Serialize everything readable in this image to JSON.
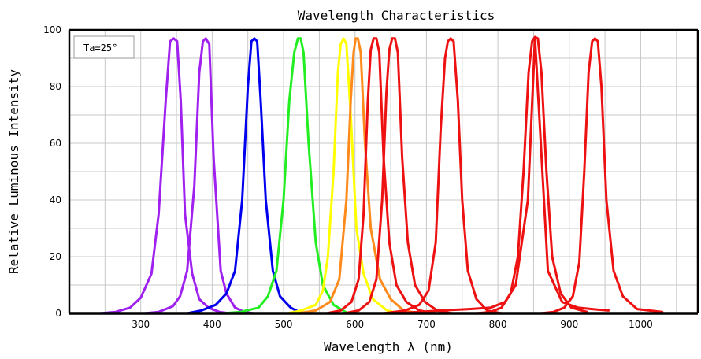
{
  "chart_data": {
    "type": "line",
    "title": "Wavelength Characteristics",
    "xlabel": "Wavelength  λ (nm)",
    "ylabel": "Relative Luminous Intensity",
    "xlim": [
      200,
      1080
    ],
    "ylim": [
      0,
      100
    ],
    "x_ticks": [
      300,
      400,
      500,
      600,
      700,
      800,
      900,
      1000
    ],
    "y_ticks": [
      0,
      20,
      40,
      60,
      80,
      100
    ],
    "x_grid": [
      250,
      300,
      350,
      400,
      450,
      500,
      550,
      600,
      650,
      700,
      750,
      800,
      850,
      900,
      950,
      1000,
      1050
    ],
    "y_grid": [
      10,
      20,
      30,
      40,
      50,
      60,
      70,
      80,
      90
    ],
    "grid": true,
    "annotation": "Ta=25°",
    "series": [
      {
        "color": "#a020f0",
        "x": [
          243,
          265,
          285,
          300,
          315,
          325,
          335,
          341,
          346,
          351,
          356,
          362,
          372,
          382,
          395,
          410,
          425
        ],
        "y": [
          0,
          0.5,
          2,
          5.5,
          14,
          35,
          75,
          96,
          97,
          96,
          75,
          35,
          14,
          5,
          2,
          0.5,
          0
        ]
      },
      {
        "color": "#a020f0",
        "x": [
          305,
          325,
          345,
          355,
          365,
          375,
          382,
          387,
          391,
          396,
          402,
          412,
          420,
          432,
          445,
          458
        ],
        "y": [
          0,
          0.5,
          2.5,
          6,
          15,
          45,
          85,
          96,
          97,
          95,
          55,
          15,
          7,
          2,
          0.5,
          0
        ]
      },
      {
        "color": "#0000ee",
        "x": [
          365,
          385,
          405,
          420,
          432,
          442,
          450,
          455,
          459,
          463,
          468,
          475,
          485,
          495,
          510,
          525
        ],
        "y": [
          0,
          1,
          3,
          7,
          15,
          40,
          80,
          96,
          97,
          96,
          75,
          40,
          15,
          6,
          2,
          0
        ]
      },
      {
        "color": "#22ee22",
        "x": [
          415,
          440,
          465,
          478,
          490,
          500,
          508,
          515,
          520,
          524,
          528,
          535,
          545,
          555,
          570,
          590
        ],
        "y": [
          0,
          0.5,
          2,
          6,
          15,
          40,
          75,
          92,
          97,
          97,
          92,
          60,
          25,
          10,
          3,
          0
        ]
      },
      {
        "color": "#ffff00",
        "x": [
          505,
          525,
          545,
          555,
          562,
          570,
          576,
          580,
          584,
          588,
          594,
          602,
          612,
          625,
          645,
          662
        ],
        "y": [
          0,
          1,
          3,
          8,
          20,
          50,
          85,
          95,
          97,
          95,
          70,
          30,
          14,
          5,
          1,
          0
        ]
      },
      {
        "color": "#ff8a1c",
        "x": [
          520,
          545,
          565,
          578,
          588,
          594,
          598,
          601,
          604,
          608,
          614,
          622,
          635,
          650,
          668,
          690
        ],
        "y": [
          0,
          1,
          4,
          12,
          40,
          75,
          92,
          97,
          97,
          92,
          60,
          30,
          12,
          5,
          1,
          0
        ]
      },
      {
        "color": "#ee1111",
        "x": [
          560,
          580,
          595,
          605,
          612,
          618,
          622,
          626,
          630,
          634,
          640,
          648,
          658,
          672,
          690,
          710
        ],
        "y": [
          0,
          1,
          4,
          12,
          35,
          75,
          93,
          97,
          97,
          92,
          55,
          25,
          10,
          4,
          1,
          0
        ]
      },
      {
        "color": "#ee1111",
        "x": [
          585,
          605,
          620,
          630,
          638,
          644,
          648,
          652,
          656,
          660,
          666,
          674,
          684,
          698,
          715,
          735
        ],
        "y": [
          0,
          1,
          4,
          12,
          40,
          78,
          93,
          97,
          97,
          92,
          55,
          25,
          10,
          4,
          1,
          0
        ]
      },
      {
        "color": "#ee1111",
        "x": [
          640,
          670,
          690,
          703,
          713,
          720,
          726,
          730,
          734,
          738,
          744,
          750,
          758,
          770,
          785,
          805
        ],
        "y": [
          0,
          1,
          3,
          8,
          25,
          65,
          90,
          96,
          97,
          96,
          75,
          40,
          15,
          5,
          1,
          0
        ]
      },
      {
        "color": "#ee1111",
        "x": [
          770,
          790,
          805,
          818,
          828,
          836,
          843,
          848,
          852,
          856,
          861,
          868,
          876,
          888,
          903,
          925
        ],
        "y": [
          0,
          0.5,
          2,
          7,
          20,
          50,
          85,
          96,
          97.5,
          97,
          85,
          50,
          20,
          7,
          2,
          0.5
        ]
      },
      {
        "color": "#ee1111",
        "x": [
          860,
          878,
          893,
          905,
          914,
          921,
          927,
          932,
          936,
          940,
          945,
          952,
          962,
          975,
          995,
          1030
        ],
        "y": [
          0,
          0.5,
          2,
          6,
          18,
          50,
          85,
          96,
          97,
          96,
          80,
          40,
          15,
          6,
          1.5,
          0.5
        ]
      },
      {
        "color": "#ee1111",
        "x": [
          650,
          690,
          720,
          760,
          790,
          810,
          825,
          842,
          852,
          870,
          890,
          912,
          932,
          955
        ],
        "y": [
          0,
          0.5,
          1,
          1.5,
          2,
          4,
          10,
          40,
          97,
          15,
          4,
          2,
          1.5,
          1
        ]
      }
    ]
  }
}
